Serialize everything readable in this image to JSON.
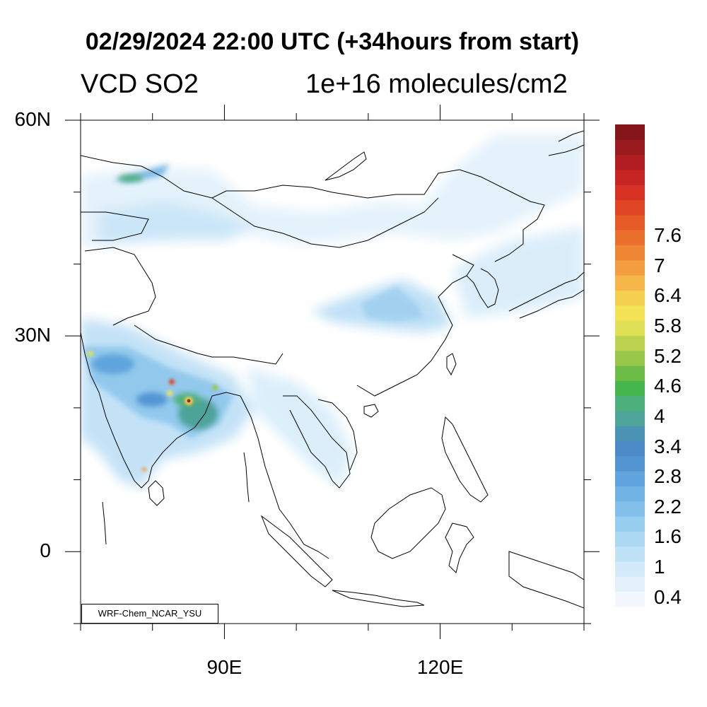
{
  "title": "02/29/2024 22:00 UTC (+34hours from start)",
  "variable": "VCD SO2",
  "units": "1e+16 molecules/cm2",
  "credit": "WRF-Chem_NCAR_YSU",
  "map": {
    "lon_range": [
      70,
      140
    ],
    "lat_range": [
      -10,
      60
    ],
    "lat_ticks": [
      {
        "label": "60N",
        "lat": 60
      },
      {
        "label": "30N",
        "lat": 30
      },
      {
        "label": "0",
        "lat": 0
      }
    ],
    "lon_ticks": [
      {
        "label": "90E",
        "lon": 90
      },
      {
        "label": "120E",
        "lon": 120
      }
    ]
  },
  "colorbar": {
    "labels": [
      "7.6",
      "7",
      "6.4",
      "5.8",
      "5.2",
      "4.6",
      "4",
      "3.4",
      "2.8",
      "2.2",
      "1.6",
      "1",
      "0.4"
    ],
    "colors": [
      "#f2f8fd",
      "#e3f1fb",
      "#d2eaf9",
      "#c0e2f6",
      "#acd8f3",
      "#97cdef",
      "#82c0ea",
      "#70b3e4",
      "#5fa4dc",
      "#5395d3",
      "#4b8ac7",
      "#4c94b6",
      "#4ea39a",
      "#4daf7c",
      "#45b54d",
      "#6ebd48",
      "#98c84a",
      "#bdd350",
      "#dfe055",
      "#f2e254",
      "#f5cf4f",
      "#f4b648",
      "#f29e3e",
      "#ef8634",
      "#eb6f2d",
      "#e65a28",
      "#df4525",
      "#d83224",
      "#c62524",
      "#b01e22",
      "#9a1a1d",
      "#84161a"
    ]
  },
  "map_colors": {
    "coast": "#000000",
    "low": "#cfe7f7",
    "mid": "#9dcfee",
    "high": "#4b8ac7",
    "hot": "#d83224"
  }
}
